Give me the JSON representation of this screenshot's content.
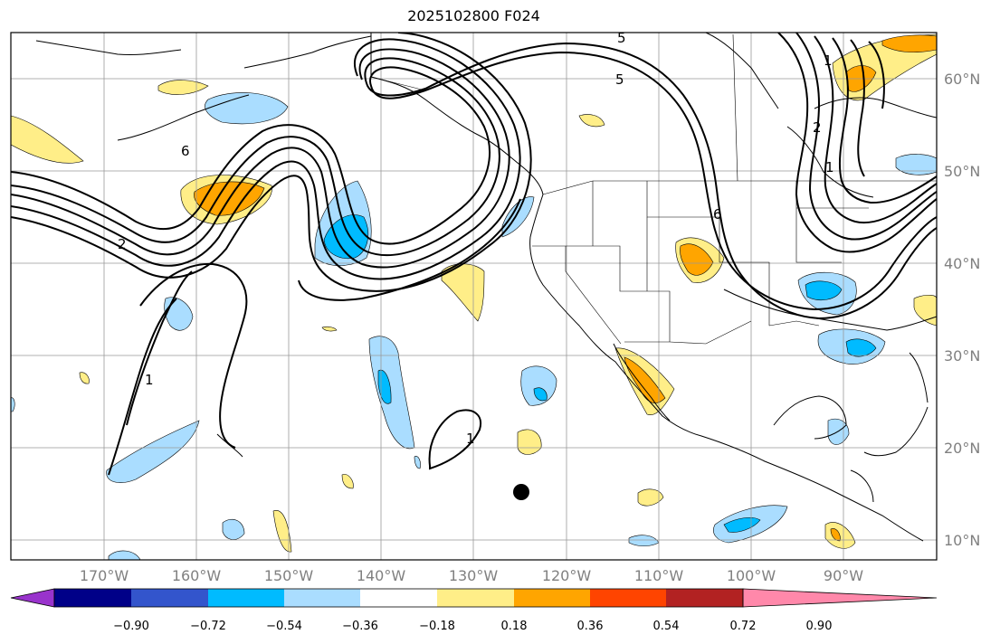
{
  "title": "2025102800 F024",
  "map": {
    "lon_labels": [
      "170°W",
      "160°W",
      "150°W",
      "140°W",
      "130°W",
      "120°W",
      "110°W",
      "100°W",
      "90°W"
    ],
    "lat_labels": [
      "60°N",
      "50°N",
      "40°N",
      "30°N",
      "20°N",
      "10°N"
    ],
    "contour_labels": [
      "5",
      "5",
      "6",
      "2",
      "1",
      "1",
      "6",
      "2",
      "1",
      "1"
    ]
  },
  "colorbar": {
    "ticks": [
      "−0.90",
      "−0.72",
      "−0.54",
      "−0.36",
      "−0.18",
      "0.18",
      "0.36",
      "0.54",
      "0.72",
      "0.90"
    ],
    "colors": [
      "#9933cc",
      "#000088",
      "#3355cc",
      "#00bbff",
      "#aaddff",
      "#ffffff",
      "#ffee88",
      "#ffa500",
      "#ff4400",
      "#b22222",
      "#ff88aa"
    ]
  }
}
